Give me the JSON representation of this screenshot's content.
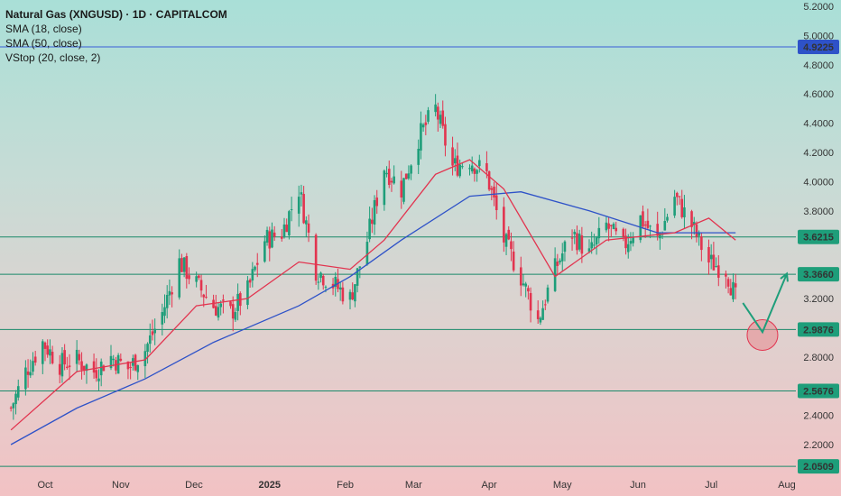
{
  "header": {
    "title": "Natural Gas (XNGUSD) · 1D · CAPITALCOM",
    "indicators": [
      "SMA (18, close)",
      "SMA (50, close)",
      "VStop (20, close, 2)"
    ]
  },
  "colors": {
    "up": "#1e9e7a",
    "down": "#e2344f",
    "sma18": "#e2344f",
    "sma50": "#2e52c8",
    "level_line": "#1a8a6a",
    "top_line": "#3a5ed8",
    "badge_green": "#1e9e7a",
    "badge_blue": "#2e52c8",
    "arrow": "#1e9e7a",
    "circle_fill": "#e88a8f"
  },
  "chart_data": {
    "type": "candlestick",
    "title": "Natural Gas (XNGUSD) · 1D · CAPITALCOM",
    "ylim": [
      2.0,
      5.3
    ],
    "y_ticks": [
      "5.2000",
      "5.0000",
      "4.8000",
      "4.6000",
      "4.4000",
      "4.2000",
      "4.0000",
      "3.8000",
      "3.2000",
      "2.8000",
      "2.4000",
      "2.2000"
    ],
    "x_ticks": [
      "Oct",
      "Nov",
      "Dec",
      "2025",
      "Feb",
      "Mar",
      "Apr",
      "May",
      "Jun",
      "Jul",
      "Aug"
    ],
    "horizontal_levels": [
      {
        "value": 4.9225,
        "label": "4.9225",
        "style": "top"
      },
      {
        "value": 3.6215,
        "label": "3.6215",
        "style": "level"
      },
      {
        "value": 3.366,
        "label": "3.3660",
        "style": "level"
      },
      {
        "value": 2.9876,
        "label": "2.9876",
        "style": "level"
      },
      {
        "value": 2.5676,
        "label": "2.5676",
        "style": "level"
      },
      {
        "value": 2.0509,
        "label": "2.0509",
        "style": "level"
      }
    ],
    "close_path": [
      [
        "2024-09-17",
        2.45
      ],
      [
        "2024-09-23",
        2.7
      ],
      [
        "2024-09-30",
        2.9
      ],
      [
        "2024-10-07",
        2.75
      ],
      [
        "2024-10-14",
        2.78
      ],
      [
        "2024-10-21",
        2.7
      ],
      [
        "2024-10-28",
        2.8
      ],
      [
        "2024-11-04",
        2.72
      ],
      [
        "2024-11-11",
        2.85
      ],
      [
        "2024-11-18",
        3.1
      ],
      [
        "2024-11-25",
        3.45
      ],
      [
        "2024-12-02",
        3.3
      ],
      [
        "2024-12-09",
        3.15
      ],
      [
        "2024-12-16",
        3.1
      ],
      [
        "2024-12-23",
        3.25
      ],
      [
        "2024-12-30",
        3.6
      ],
      [
        "2025-01-06",
        3.65
      ],
      [
        "2025-01-13",
        3.95
      ],
      [
        "2025-01-20",
        3.4
      ],
      [
        "2025-01-27",
        3.3
      ],
      [
        "2025-02-03",
        3.2
      ],
      [
        "2025-02-10",
        3.6
      ],
      [
        "2025-02-17",
        4.1
      ],
      [
        "2025-02-24",
        3.95
      ],
      [
        "2025-03-03",
        4.3
      ],
      [
        "2025-03-10",
        4.5
      ],
      [
        "2025-03-17",
        4.1
      ],
      [
        "2025-03-24",
        4.15
      ],
      [
        "2025-03-31",
        4.05
      ],
      [
        "2025-04-07",
        3.6
      ],
      [
        "2025-04-14",
        3.35
      ],
      [
        "2025-04-21",
        3.05
      ],
      [
        "2025-04-28",
        3.4
      ],
      [
        "2025-05-05",
        3.65
      ],
      [
        "2025-05-12",
        3.5
      ],
      [
        "2025-05-19",
        3.7
      ],
      [
        "2025-05-26",
        3.55
      ],
      [
        "2025-06-02",
        3.75
      ],
      [
        "2025-06-09",
        3.6
      ],
      [
        "2025-06-16",
        3.9
      ],
      [
        "2025-06-23",
        3.7
      ],
      [
        "2025-06-30",
        3.45
      ],
      [
        "2025-07-07",
        3.4
      ],
      [
        "2025-07-11",
        3.2
      ]
    ],
    "sma18_path": [
      [
        "2024-09-17",
        2.3
      ],
      [
        "2024-10-14",
        2.7
      ],
      [
        "2024-11-11",
        2.78
      ],
      [
        "2024-12-02",
        3.15
      ],
      [
        "2024-12-23",
        3.2
      ],
      [
        "2025-01-13",
        3.45
      ],
      [
        "2025-02-03",
        3.4
      ],
      [
        "2025-02-17",
        3.6
      ],
      [
        "2025-03-10",
        4.05
      ],
      [
        "2025-03-24",
        4.15
      ],
      [
        "2025-04-07",
        3.95
      ],
      [
        "2025-04-28",
        3.35
      ],
      [
        "2025-05-19",
        3.6
      ],
      [
        "2025-06-16",
        3.65
      ],
      [
        "2025-06-30",
        3.75
      ],
      [
        "2025-07-11",
        3.6
      ]
    ],
    "sma50_path": [
      [
        "2024-09-17",
        2.2
      ],
      [
        "2024-10-14",
        2.45
      ],
      [
        "2024-11-11",
        2.65
      ],
      [
        "2024-12-09",
        2.9
      ],
      [
        "2025-01-13",
        3.15
      ],
      [
        "2025-02-03",
        3.35
      ],
      [
        "2025-02-24",
        3.6
      ],
      [
        "2025-03-24",
        3.9
      ],
      [
        "2025-04-14",
        3.93
      ],
      [
        "2025-05-12",
        3.8
      ],
      [
        "2025-06-09",
        3.65
      ],
      [
        "2025-07-11",
        3.65
      ]
    ],
    "projection": {
      "path": [
        [
          "2025-07-14",
          3.17
        ],
        [
          "2025-07-22",
          2.97
        ],
        [
          "2025-08-01",
          3.37
        ]
      ],
      "target_circle": [
        "2025-07-22",
        2.95
      ]
    },
    "grid": false,
    "legend_position": "top-left"
  }
}
